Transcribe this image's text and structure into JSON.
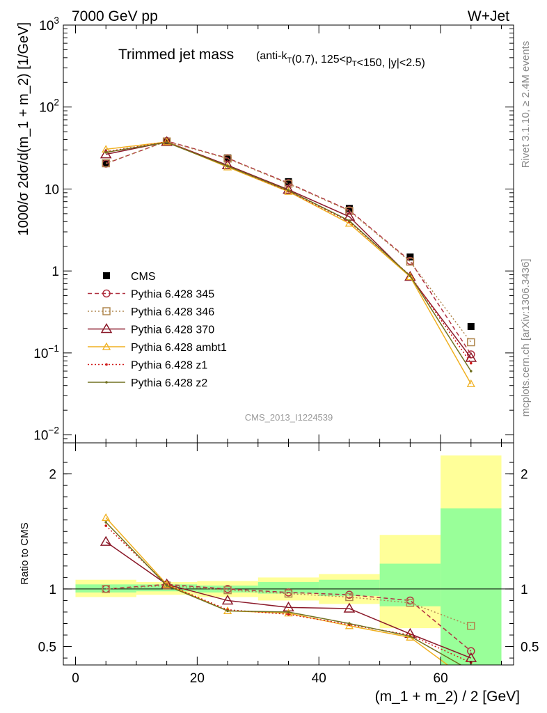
{
  "header": {
    "left": "7000 GeV pp",
    "right": "W+Jet"
  },
  "title": {
    "main": "Trimmed jet mass",
    "sub": "(anti-k_T(0.7), 125<p_T<150, |y|<2.5)"
  },
  "side_labels": {
    "rivet": "Rivet 3.1.10, ≥ 2.4M events",
    "mcplots": "mcplots.cern.ch [arXiv:1306.3436]"
  },
  "watermark": "CMS_2013_I1224539",
  "ylabel_main": "1000/σ 2dσ/d(m_1 + m_2) [1/GeV]",
  "ylabel_ratio": "Ratio to CMS",
  "xlabel": "(m_1 + m_2) / 2 [GeV]",
  "colors": {
    "CMS": "#000000",
    "p345": "#b03040",
    "p346": "#b08850",
    "p370": "#8b1a2a",
    "ambt1": "#f0b020",
    "z1": "#d01818",
    "z2": "#707020",
    "band_inner": "#99ff99",
    "band_outer": "#ffff99"
  },
  "chart_data": [
    {
      "type": "line",
      "yscale": "log",
      "xlim": [
        -2,
        72
      ],
      "ylim": [
        0.008,
        1000
      ],
      "x_ticks": [
        "0",
        "20",
        "40",
        "60"
      ],
      "y_ticks": [
        "10^-2",
        "10^-1",
        "1",
        "10",
        "10^2",
        "10^3"
      ],
      "x": [
        5,
        15,
        25,
        35,
        45,
        55,
        65
      ],
      "series": [
        {
          "name": "CMS",
          "values": [
            20.5,
            37.0,
            24.0,
            12.3,
            5.8,
            1.48,
            0.21
          ]
        },
        {
          "name": "Pythia 6.428 345",
          "values": [
            20.4,
            38.5,
            23.8,
            11.8,
            5.5,
            1.33,
            0.096
          ]
        },
        {
          "name": "Pythia 6.428 346",
          "values": [
            20.6,
            38.0,
            23.5,
            11.6,
            5.4,
            1.3,
            0.135
          ]
        },
        {
          "name": "Pythia 6.428 370",
          "values": [
            26.5,
            37.5,
            19.5,
            9.8,
            4.6,
            0.85,
            0.087
          ]
        },
        {
          "name": "Pythia 6.428 ambt1",
          "values": [
            30.5,
            37.5,
            18.5,
            9.3,
            3.8,
            0.85,
            0.042
          ]
        },
        {
          "name": "Pythia 6.428 z1",
          "values": [
            28.5,
            37.5,
            19.0,
            9.4,
            4.0,
            0.88,
            0.075
          ]
        },
        {
          "name": "Pythia 6.428 z2",
          "values": [
            28.0,
            37.0,
            19.0,
            9.6,
            4.1,
            0.87,
            0.06
          ]
        }
      ]
    },
    {
      "type": "line",
      "yscale": "linear",
      "xlim": [
        -2,
        72
      ],
      "ylim": [
        0.34,
        2.27
      ],
      "x_ticks": [
        "0",
        "20",
        "40",
        "60"
      ],
      "y_ticks": [
        "0.5",
        "1",
        "2"
      ],
      "x": [
        5,
        15,
        25,
        35,
        45,
        55,
        65
      ],
      "bands": {
        "edges": [
          0,
          10,
          20,
          30,
          40,
          50,
          60,
          70
        ],
        "inner": [
          [
            0.97,
            1.04
          ],
          [
            0.98,
            1.04
          ],
          [
            0.97,
            1.03
          ],
          [
            0.96,
            1.06
          ],
          [
            0.94,
            1.08
          ],
          [
            0.85,
            1.22
          ],
          [
            0.3,
            1.7
          ]
        ],
        "outer": [
          [
            0.93,
            1.08
          ],
          [
            0.95,
            1.06
          ],
          [
            0.93,
            1.07
          ],
          [
            0.9,
            1.1
          ],
          [
            0.87,
            1.13
          ],
          [
            0.66,
            1.47
          ],
          [
            0.3,
            2.16
          ]
        ]
      },
      "series": [
        {
          "name": "Pythia 6.428 345",
          "values": [
            1.0,
            1.04,
            1.0,
            0.97,
            0.95,
            0.9,
            0.46
          ]
        },
        {
          "name": "Pythia 6.428 346",
          "values": [
            1.0,
            1.03,
            0.99,
            0.96,
            0.93,
            0.88,
            0.68
          ]
        },
        {
          "name": "Pythia 6.428 370",
          "values": [
            1.41,
            1.04,
            0.9,
            0.84,
            0.83,
            0.61,
            0.4
          ]
        },
        {
          "name": "Pythia 6.428 ambt1",
          "values": [
            1.62,
            1.04,
            0.81,
            0.79,
            0.68,
            0.58,
            0.19
          ]
        },
        {
          "name": "Pythia 6.428 z1",
          "values": [
            1.55,
            1.04,
            0.82,
            0.78,
            0.69,
            0.6,
            0.36
          ]
        },
        {
          "name": "Pythia 6.428 z2",
          "values": [
            1.58,
            1.03,
            0.81,
            0.8,
            0.7,
            0.59,
            0.29
          ]
        }
      ]
    }
  ]
}
